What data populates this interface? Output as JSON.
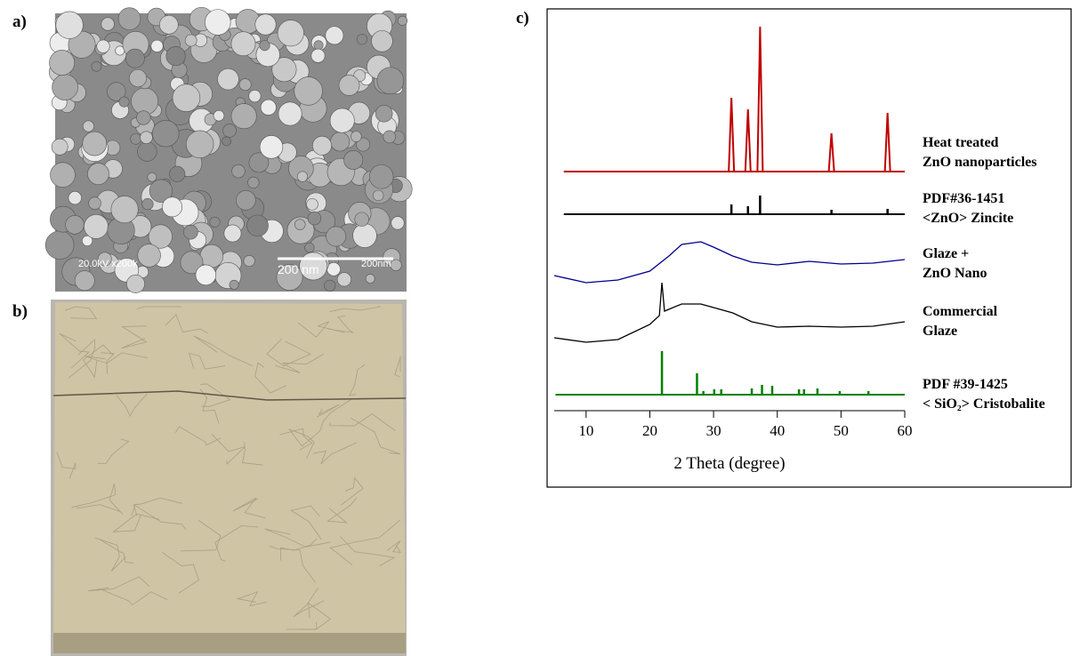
{
  "panels": {
    "a": {
      "label": "a)",
      "annotations": {
        "microscope": "20.0kV x200k",
        "scale_bar": "200 nm",
        "scale_text": "200nm"
      }
    },
    "b": {
      "label": "b)"
    },
    "c": {
      "label": "c)"
    }
  },
  "chart_data": {
    "type": "line",
    "xlabel": "2 Theta (degree)",
    "xlim": [
      5,
      60
    ],
    "xticks": [
      10,
      20,
      30,
      40,
      50,
      60
    ],
    "series": [
      {
        "name": [
          "Heat treated",
          "ZnO nanoparticles"
        ],
        "color": "#c00000",
        "style": "peak",
        "x": [
          32.8,
          35.4,
          37.3,
          48.5,
          57.3
        ],
        "values": [
          83,
          70,
          163,
          43,
          66
        ]
      },
      {
        "name": [
          "PDF#36-1451",
          "<ZnO> Zincite"
        ],
        "color": "#000000",
        "style": "stick",
        "x": [
          32.8,
          35.4,
          37.3,
          48.5,
          57.3
        ],
        "values": [
          11,
          9,
          21,
          5,
          6
        ]
      },
      {
        "name": [
          "Glaze +",
          "ZnO Nano"
        ],
        "color": "#00008b",
        "style": "line",
        "x": [
          5,
          10,
          15,
          20,
          23,
          25,
          28,
          30,
          33,
          36,
          40,
          45,
          50,
          55,
          60
        ],
        "values": [
          10,
          2,
          5,
          15,
          32,
          45,
          48,
          42,
          32,
          25,
          22,
          26,
          23,
          24,
          28
        ]
      },
      {
        "name": [
          "Commercial",
          "Glaze"
        ],
        "color": "#000000",
        "style": "line",
        "x": [
          5,
          10,
          15,
          20,
          21.5,
          21.9,
          22.3,
          25,
          28,
          30,
          33,
          36,
          40,
          45,
          50,
          55,
          60
        ],
        "values": [
          10,
          5,
          8,
          25,
          35,
          72,
          40,
          48,
          48,
          44,
          38,
          28,
          22,
          23,
          22,
          23,
          28
        ]
      },
      {
        "name": [
          "PDF #39-1425",
          "< SiO₂> Cristobalite"
        ],
        "color": "#008000",
        "style": "stick",
        "x": [
          21.9,
          27.4,
          28.4,
          30.1,
          31.2,
          36,
          37.6,
          39.2,
          43.4,
          44.2,
          46.3,
          49.8,
          54.3
        ],
        "values": [
          49,
          24,
          4,
          6,
          6,
          7,
          11,
          10,
          6,
          6,
          7,
          4,
          4
        ]
      }
    ]
  }
}
